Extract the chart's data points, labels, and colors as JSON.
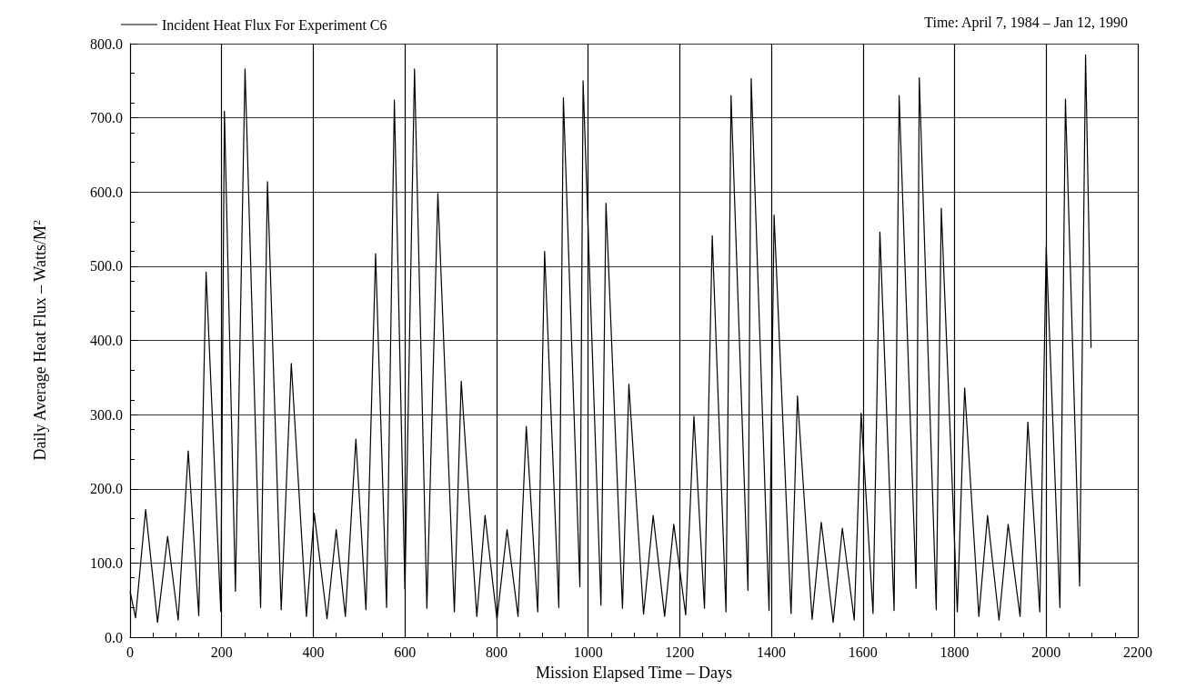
{
  "chart_data": {
    "type": "line",
    "xlabel": "Mission Elapsed Time – Days",
    "ylabel": "Daily Average Heat Flux – Watts/M$^{2}$",
    "annotations": [
      "Time: April 7, 1984 – Jan 12, 1990"
    ],
    "x": [
      0,
      12,
      34,
      60,
      82,
      105,
      127,
      150,
      166,
      198,
      206,
      230,
      251,
      285,
      300,
      330,
      352,
      385,
      402,
      430,
      450,
      470,
      493,
      515,
      536,
      560,
      577,
      600,
      621,
      648,
      672,
      708,
      723,
      757,
      775,
      801,
      823,
      847,
      865,
      890,
      905,
      936,
      946,
      982,
      989,
      1028,
      1039,
      1075,
      1089,
      1121,
      1142,
      1167,
      1187,
      1213,
      1231,
      1254,
      1271,
      1301,
      1312,
      1349,
      1356,
      1395,
      1406,
      1443,
      1457,
      1489,
      1509,
      1535,
      1555,
      1581,
      1596,
      1622,
      1637,
      1668,
      1679,
      1716,
      1723,
      1760,
      1771,
      1806,
      1822,
      1853,
      1872,
      1897,
      1917,
      1943,
      1960,
      1986,
      2000,
      2030,
      2042,
      2073,
      2086,
      2098
    ],
    "series": [
      {
        "name": "Incident Heat Flux For Experiment C6",
        "color": "#000000",
        "values": [
          62,
          26,
          172,
          20,
          136,
          23,
          251,
          29,
          492,
          35,
          709,
          62,
          766,
          40,
          614,
          37,
          369,
          28,
          167,
          25,
          145,
          28,
          267,
          37,
          517,
          40,
          724,
          65,
          766,
          39,
          598,
          34,
          345,
          28,
          164,
          24,
          145,
          28,
          284,
          34,
          520,
          40,
          727,
          68,
          750,
          43,
          585,
          39,
          341,
          31,
          164,
          28,
          152,
          30,
          298,
          39,
          541,
          34,
          730,
          63,
          753,
          36,
          569,
          32,
          325,
          24,
          155,
          20,
          147,
          23,
          302,
          32,
          546,
          36,
          730,
          66,
          754,
          37,
          578,
          34,
          336,
          28,
          164,
          23,
          152,
          28,
          290,
          34,
          526,
          40,
          725,
          69,
          785,
          390
        ]
      }
    ],
    "xlim": [
      0,
      2200
    ],
    "xticks": [
      0,
      200,
      400,
      600,
      800,
      1000,
      1200,
      1400,
      1600,
      1800,
      2000,
      2200
    ],
    "ylim": [
      0,
      800
    ],
    "yticks": [
      {
        "value": 0,
        "label": "0.0"
      },
      {
        "value": 100,
        "label": "100.0"
      },
      {
        "value": 200,
        "label": "200.0"
      },
      {
        "value": 300,
        "label": "300.0"
      },
      {
        "value": 400,
        "label": "400.0"
      },
      {
        "value": 500,
        "label": "500.0"
      },
      {
        "value": 600,
        "label": "600.0"
      },
      {
        "value": 700,
        "label": "700.0"
      },
      {
        "value": 800,
        "label": "800.0"
      }
    ],
    "grid": true,
    "legend": "top left",
    "marker": "none",
    "line_style": "solid"
  }
}
